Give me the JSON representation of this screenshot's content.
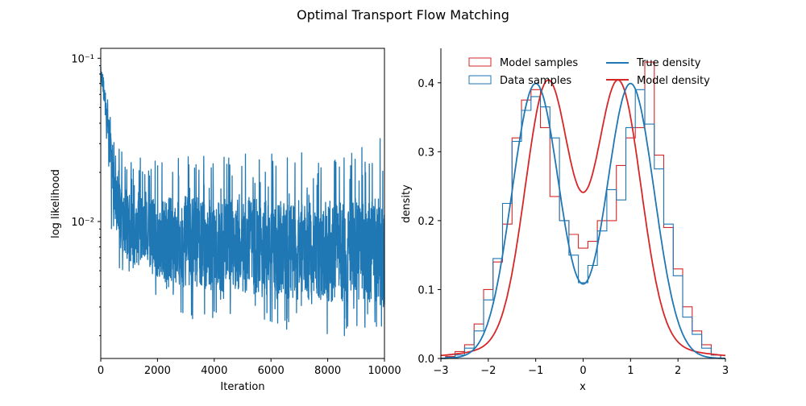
{
  "figure": {
    "title": "Optimal Transport Flow Matching"
  },
  "chart_data": [
    {
      "type": "line",
      "title": "",
      "xlabel": "Iteration",
      "ylabel": "log likelihood",
      "xlim": [
        0,
        10000
      ],
      "ylim": [
        0.00145,
        0.115
      ],
      "yscale": "log",
      "xticks": [
        0,
        2000,
        4000,
        6000,
        8000,
        10000
      ],
      "xtick_labels": [
        "0",
        "2000",
        "4000",
        "6000",
        "8000",
        "10000"
      ],
      "yticks_major": [
        0.01,
        0.1
      ],
      "ytick_labels": [
        "10⁻²",
        "10⁻¹"
      ],
      "grid": false,
      "series": [
        {
          "color": "#1f77b4",
          "x": [
            0,
            50,
            100,
            200,
            300,
            400,
            500,
            700,
            1000,
            1500,
            2000,
            3000,
            4000,
            5000,
            6000,
            7000,
            8000,
            9000,
            10000
          ],
          "y_mean": [
            0.08,
            0.075,
            0.065,
            0.05,
            0.035,
            0.022,
            0.015,
            0.011,
            0.009,
            0.0085,
            0.008,
            0.0075,
            0.0072,
            0.007,
            0.0068,
            0.0067,
            0.0066,
            0.0065,
            0.0065
          ],
          "y_high": [
            0.09,
            0.085,
            0.08,
            0.06,
            0.05,
            0.035,
            0.03,
            0.028,
            0.028,
            0.027,
            0.026,
            0.026,
            0.025,
            0.026,
            0.026,
            0.027,
            0.027,
            0.028,
            0.035
          ],
          "y_low": [
            0.065,
            0.055,
            0.045,
            0.03,
            0.012,
            0.008,
            0.006,
            0.005,
            0.0045,
            0.004,
            0.0035,
            0.0025,
            0.0024,
            0.0023,
            0.0022,
            0.0021,
            0.002,
            0.002,
            0.0022
          ]
        }
      ]
    },
    {
      "type": "histogram",
      "title": "",
      "xlabel": "x",
      "ylabel": "density",
      "xlim": [
        -3,
        3
      ],
      "ylim": [
        0,
        0.45
      ],
      "xticks": [
        -3,
        -2,
        -1,
        0,
        1,
        2,
        3
      ],
      "yticks": [
        0.0,
        0.1,
        0.2,
        0.3,
        0.4
      ],
      "ytick_labels": [
        "0.0",
        "0.1",
        "0.2",
        "0.3",
        "0.4"
      ],
      "legend_position": "top",
      "bin_edges": [
        -2.9,
        -2.7,
        -2.5,
        -2.3,
        -2.1,
        -1.9,
        -1.7,
        -1.5,
        -1.3,
        -1.1,
        -0.9,
        -0.7,
        -0.5,
        -0.3,
        -0.1,
        0.1,
        0.3,
        0.5,
        0.7,
        0.9,
        1.1,
        1.3,
        1.5,
        1.7,
        1.9,
        2.1,
        2.3,
        2.5,
        2.7,
        2.9
      ],
      "hist_series": [
        {
          "name": "Model samples",
          "color": "#d62728",
          "values": [
            0.003,
            0.01,
            0.02,
            0.05,
            0.1,
            0.14,
            0.195,
            0.32,
            0.375,
            0.39,
            0.335,
            0.235,
            0.2,
            0.18,
            0.16,
            0.17,
            0.2,
            0.2,
            0.28,
            0.32,
            0.335,
            0.43,
            0.295,
            0.19,
            0.13,
            0.075,
            0.04,
            0.02,
            0.005
          ]
        },
        {
          "name": "Data samples",
          "color": "#1f77b4",
          "values": [
            0.002,
            0.005,
            0.015,
            0.04,
            0.085,
            0.145,
            0.225,
            0.315,
            0.36,
            0.38,
            0.365,
            0.32,
            0.2,
            0.15,
            0.11,
            0.135,
            0.185,
            0.245,
            0.23,
            0.335,
            0.39,
            0.34,
            0.275,
            0.195,
            0.12,
            0.06,
            0.035,
            0.015,
            0.005
          ]
        }
      ],
      "line_series": [
        {
          "name": "True density",
          "color": "#1f77b4",
          "mixture": {
            "means": [
              -1,
              1
            ],
            "sd": 0.5,
            "weights": [
              0.5,
              0.5
            ]
          }
        },
        {
          "name": "Model density",
          "color": "#d62728",
          "mixture": {
            "means": [
              -0.75,
              0.75
            ],
            "sd": 0.46,
            "weights": [
              0.5,
              0.5
            ],
            "baseline_sd": 1.4,
            "baseline_weight": 0.0
          }
        }
      ]
    }
  ]
}
